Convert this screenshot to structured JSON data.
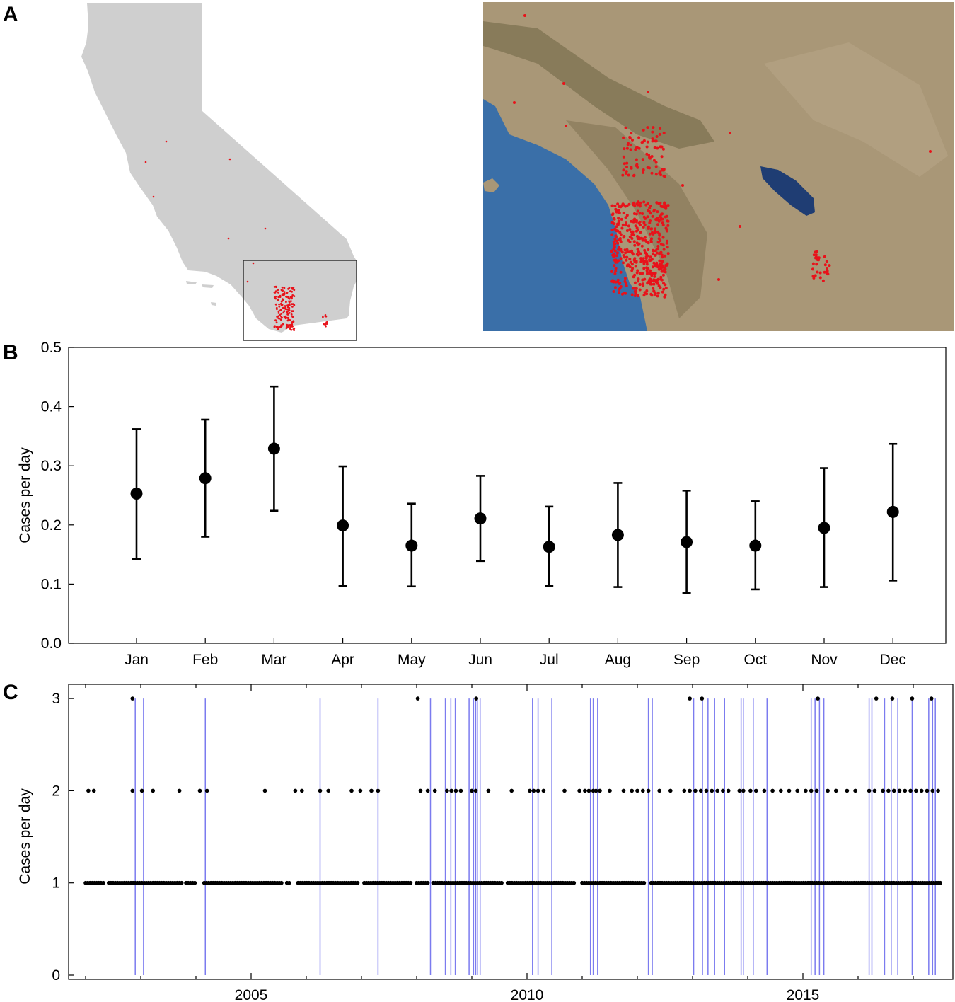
{
  "panels": {
    "a": "A",
    "b": "B",
    "c": "C"
  },
  "colors": {
    "state_fill": "#cfcfcf",
    "case_marker": "#e8121a",
    "ocean": "#3a6fa8",
    "land": "#a99777",
    "errorbar": "#000000",
    "event_line": "#7b7bef",
    "point": "#000000"
  },
  "map_panel": {
    "left_map": "california-outline-map",
    "right_map": "southern-california-satellite-image",
    "inset_box": "study-region-box"
  },
  "chart_data": [
    {
      "type": "scatter",
      "panel": "B",
      "ylabel": "Cases per day",
      "xlabel": "",
      "categories": [
        "Jan",
        "Feb",
        "Mar",
        "Apr",
        "May",
        "Jun",
        "Jul",
        "Aug",
        "Sep",
        "Oct",
        "Nov",
        "Dec"
      ],
      "values": [
        0.253,
        0.279,
        0.329,
        0.199,
        0.165,
        0.211,
        0.163,
        0.183,
        0.171,
        0.165,
        0.195,
        0.222
      ],
      "error_low": [
        0.142,
        0.18,
        0.224,
        0.097,
        0.096,
        0.139,
        0.097,
        0.095,
        0.085,
        0.091,
        0.095,
        0.106
      ],
      "error_high": [
        0.362,
        0.378,
        0.434,
        0.299,
        0.236,
        0.283,
        0.231,
        0.271,
        0.258,
        0.24,
        0.296,
        0.337
      ],
      "ylim": [
        0,
        0.5
      ],
      "yticks": [
        "0.0",
        "0.1",
        "0.2",
        "0.3",
        "0.4",
        "0.5"
      ],
      "grid": false
    },
    {
      "type": "scatter",
      "panel": "C",
      "ylabel": "Cases per day",
      "xlabel": "",
      "xlim": [
        2002.0,
        2017.5
      ],
      "xticks": [
        "2005",
        "2010",
        "2015"
      ],
      "ylim": [
        0,
        3
      ],
      "yticks": [
        "0",
        "1",
        "2",
        "3"
      ],
      "grid": false,
      "points_3": [
        2002.85,
        2008.02,
        2009.08,
        2012.95,
        2013.17,
        2015.27,
        2016.33,
        2016.62,
        2016.98,
        2017.33
      ],
      "points_2": [
        2002.05,
        2002.15,
        2002.85,
        2003.02,
        2003.22,
        2003.7,
        2004.07,
        2004.2,
        2005.25,
        2005.8,
        2005.92,
        2006.25,
        2006.4,
        2006.82,
        2006.98,
        2007.18,
        2007.3,
        2008.07,
        2008.2,
        2008.33,
        2008.55,
        2008.63,
        2008.71,
        2008.8,
        2009.0,
        2009.07,
        2009.3,
        2009.72,
        2010.05,
        2010.12,
        2010.2,
        2010.3,
        2010.68,
        2010.95,
        2011.05,
        2011.12,
        2011.2,
        2011.25,
        2011.32,
        2011.5,
        2011.75,
        2011.9,
        2012.0,
        2012.1,
        2012.2,
        2012.4,
        2012.6,
        2012.85,
        2012.95,
        2013.05,
        2013.15,
        2013.25,
        2013.35,
        2013.45,
        2013.55,
        2013.65,
        2013.85,
        2013.92,
        2014.05,
        2014.15,
        2014.3,
        2014.45,
        2014.6,
        2014.75,
        2014.9,
        2015.05,
        2015.15,
        2015.25,
        2015.45,
        2015.6,
        2015.8,
        2015.95,
        2016.2,
        2016.3,
        2016.45,
        2016.55,
        2016.65,
        2016.75,
        2016.85,
        2016.95,
        2017.05,
        2017.15,
        2017.25,
        2017.35,
        2017.45
      ],
      "points_1_ranges": [
        [
          2002.0,
          2002.32
        ],
        [
          2002.42,
          2003.75
        ],
        [
          2003.82,
          2004.0
        ],
        [
          2004.15,
          2005.55
        ],
        [
          2005.65,
          2005.7
        ],
        [
          2005.85,
          2006.95
        ],
        [
          2007.05,
          2007.9
        ],
        [
          2008.0,
          2008.2
        ],
        [
          2008.3,
          2009.55
        ],
        [
          2009.65,
          2010.85
        ],
        [
          2011.0,
          2012.15
        ],
        [
          2012.25,
          2017.5
        ]
      ],
      "event_lines": [
        2002.9,
        2003.05,
        2004.17,
        2006.25,
        2007.3,
        2008.25,
        2008.52,
        2008.62,
        2008.7,
        2008.95,
        2009.03,
        2009.07,
        2009.1,
        2009.15,
        2010.1,
        2010.2,
        2010.45,
        2011.15,
        2011.2,
        2011.28,
        2012.2,
        2012.27,
        2013.02,
        2013.18,
        2013.28,
        2013.4,
        2013.58,
        2013.88,
        2013.92,
        2014.1,
        2014.35,
        2015.15,
        2015.22,
        2015.3,
        2015.38,
        2016.2,
        2016.25,
        2016.48,
        2016.6,
        2016.72,
        2016.98,
        2017.28,
        2017.35,
        2017.4
      ]
    }
  ]
}
